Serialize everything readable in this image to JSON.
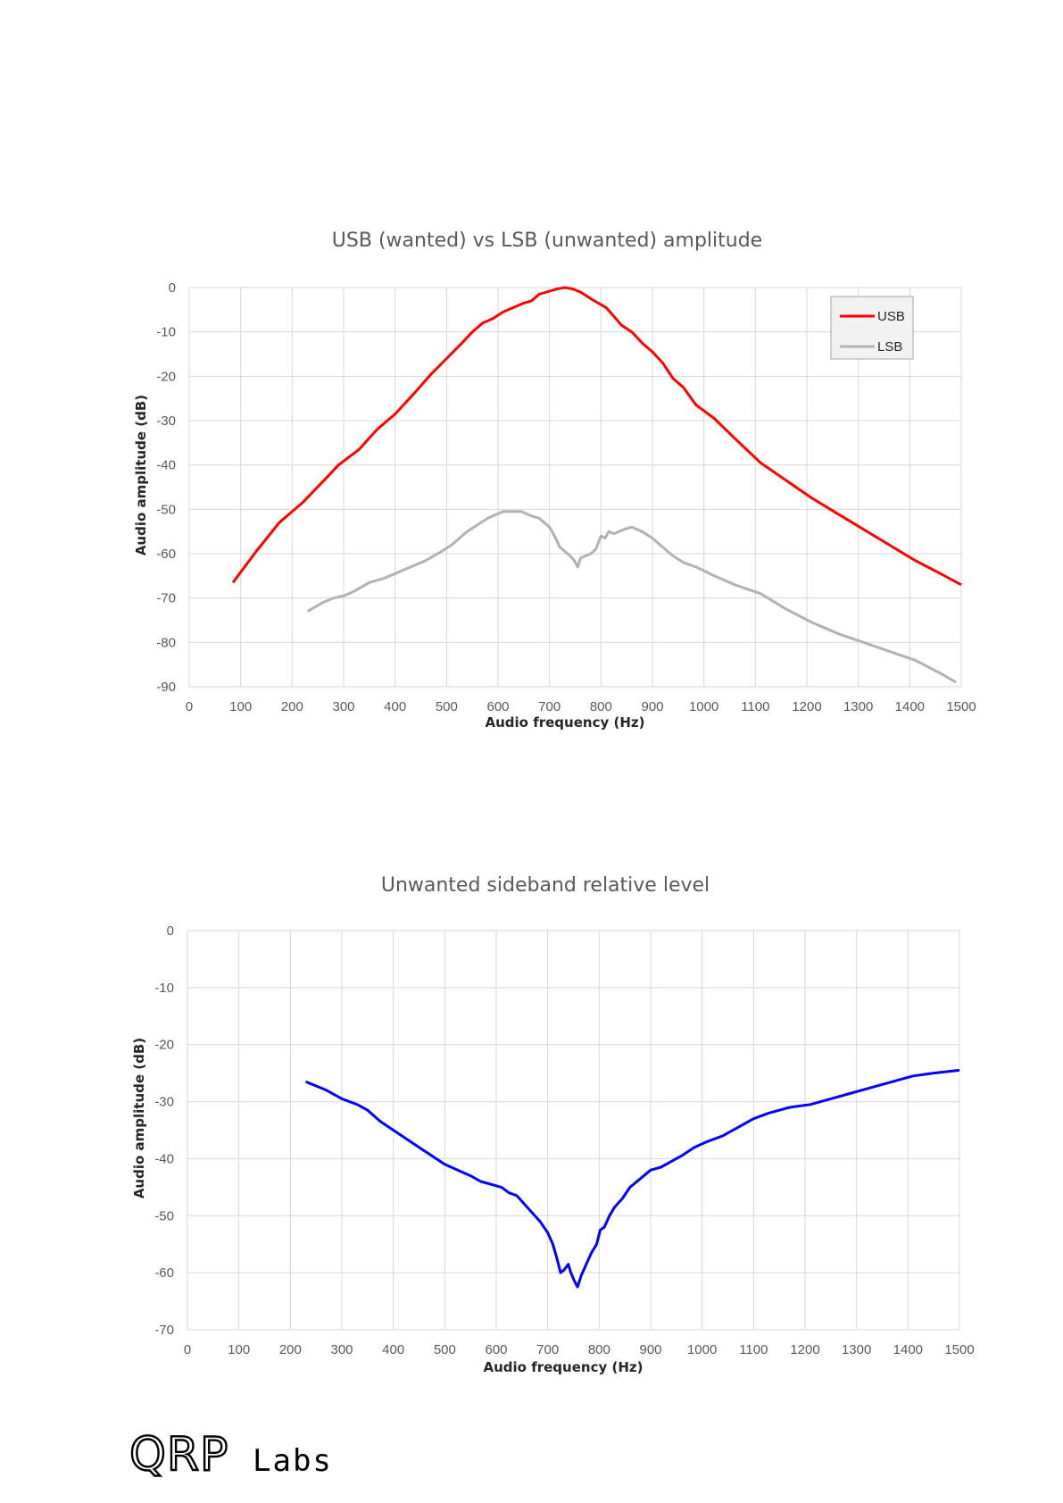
{
  "chart_data": [
    {
      "type": "line",
      "title": "USB (wanted) vs LSB (unwanted) amplitude",
      "xlabel": "Audio frequency (Hz)",
      "ylabel": "Audio amplitude (dB)",
      "xlim": [
        0,
        1500
      ],
      "ylim": [
        -90,
        0
      ],
      "x_ticks": [
        "0",
        "100",
        "200",
        "300",
        "400",
        "500",
        "600",
        "700",
        "800",
        "900",
        "1000",
        "1100",
        "1200",
        "1300",
        "1400",
        "1500"
      ],
      "y_ticks": [
        "0",
        "-10",
        "-20",
        "-30",
        "-40",
        "-50",
        "-60",
        "-70",
        "-80",
        "-90"
      ],
      "grid": true,
      "legend": "top-right",
      "series": [
        {
          "name": "USB",
          "color": "#ff0000",
          "points": [
            [
              85,
              -66.5
            ],
            [
              130,
              -59.5
            ],
            [
              175,
              -53
            ],
            [
              220,
              -48.5
            ],
            [
              270,
              -42.5
            ],
            [
              290,
              -40
            ],
            [
              330,
              -36.5
            ],
            [
              365,
              -32
            ],
            [
              400,
              -28.5
            ],
            [
              440,
              -23.5
            ],
            [
              470,
              -19.5
            ],
            [
              500,
              -16
            ],
            [
              530,
              -12.5
            ],
            [
              550,
              -10
            ],
            [
              570,
              -8
            ],
            [
              590,
              -7
            ],
            [
              610,
              -5.5
            ],
            [
              630,
              -4.5
            ],
            [
              650,
              -3.5
            ],
            [
              665,
              -3
            ],
            [
              680,
              -1.5
            ],
            [
              700,
              -0.8
            ],
            [
              715,
              -0.3
            ],
            [
              730,
              0
            ],
            [
              745,
              -0.3
            ],
            [
              760,
              -1
            ],
            [
              780,
              -2.5
            ],
            [
              795,
              -3.5
            ],
            [
              810,
              -4.5
            ],
            [
              825,
              -6.5
            ],
            [
              840,
              -8.5
            ],
            [
              860,
              -10
            ],
            [
              880,
              -12.5
            ],
            [
              900,
              -14.5
            ],
            [
              920,
              -17
            ],
            [
              940,
              -20.5
            ],
            [
              960,
              -22.5
            ],
            [
              985,
              -26.5
            ],
            [
              1020,
              -29.5
            ],
            [
              1060,
              -34
            ],
            [
              1110,
              -39.5
            ],
            [
              1160,
              -43.5
            ],
            [
              1210,
              -47.5
            ],
            [
              1260,
              -51
            ],
            [
              1310,
              -54.5
            ],
            [
              1360,
              -58
            ],
            [
              1410,
              -61.5
            ],
            [
              1460,
              -64.5
            ],
            [
              1500,
              -67
            ]
          ]
        },
        {
          "name": "LSB",
          "color": "#b2b2b2",
          "points": [
            [
              230,
              -73
            ],
            [
              260,
              -71
            ],
            [
              280,
              -70
            ],
            [
              300,
              -69.5
            ],
            [
              320,
              -68.5
            ],
            [
              350,
              -66.5
            ],
            [
              380,
              -65.5
            ],
            [
              400,
              -64.5
            ],
            [
              430,
              -63
            ],
            [
              460,
              -61.5
            ],
            [
              490,
              -59.5
            ],
            [
              510,
              -58
            ],
            [
              540,
              -55
            ],
            [
              560,
              -53.5
            ],
            [
              580,
              -52
            ],
            [
              600,
              -51
            ],
            [
              610,
              -50.5
            ],
            [
              625,
              -50.5
            ],
            [
              645,
              -50.5
            ],
            [
              655,
              -51
            ],
            [
              665,
              -51.5
            ],
            [
              680,
              -52
            ],
            [
              700,
              -54
            ],
            [
              712,
              -56.5
            ],
            [
              720,
              -58.5
            ],
            [
              730,
              -59.5
            ],
            [
              740,
              -60.5
            ],
            [
              748,
              -61.5
            ],
            [
              755,
              -63
            ],
            [
              760,
              -61
            ],
            [
              770,
              -60.5
            ],
            [
              780,
              -60
            ],
            [
              790,
              -59
            ],
            [
              800,
              -56
            ],
            [
              808,
              -56.5
            ],
            [
              815,
              -55
            ],
            [
              825,
              -55.5
            ],
            [
              835,
              -55
            ],
            [
              845,
              -54.5
            ],
            [
              860,
              -54
            ],
            [
              880,
              -55
            ],
            [
              900,
              -56.5
            ],
            [
              920,
              -58.5
            ],
            [
              940,
              -60.5
            ],
            [
              960,
              -62
            ],
            [
              985,
              -63
            ],
            [
              1020,
              -65
            ],
            [
              1060,
              -67
            ],
            [
              1110,
              -69
            ],
            [
              1160,
              -72.5
            ],
            [
              1210,
              -75.5
            ],
            [
              1260,
              -78
            ],
            [
              1310,
              -80
            ],
            [
              1360,
              -82
            ],
            [
              1410,
              -84
            ],
            [
              1460,
              -87
            ],
            [
              1490,
              -89
            ]
          ]
        }
      ]
    },
    {
      "type": "line",
      "title": "Unwanted sideband relative level",
      "xlabel": "Audio frequency (Hz)",
      "ylabel": "Audio amplitude (dB)",
      "xlim": [
        0,
        1500
      ],
      "ylim": [
        -70,
        0
      ],
      "x_ticks": [
        "0",
        "100",
        "200",
        "300",
        "400",
        "500",
        "600",
        "700",
        "800",
        "900",
        "1000",
        "1100",
        "1200",
        "1300",
        "1400",
        "1500"
      ],
      "y_ticks": [
        "0",
        "-10",
        "-20",
        "-30",
        "-40",
        "-50",
        "-60",
        "-70"
      ],
      "grid": true,
      "series": [
        {
          "color": "#0000ff",
          "points": [
            [
              230,
              -26.5
            ],
            [
              270,
              -28
            ],
            [
              300,
              -29.5
            ],
            [
              330,
              -30.5
            ],
            [
              350,
              -31.5
            ],
            [
              375,
              -33.5
            ],
            [
              400,
              -35
            ],
            [
              425,
              -36.5
            ],
            [
              450,
              -38
            ],
            [
              475,
              -39.5
            ],
            [
              500,
              -41
            ],
            [
              525,
              -42
            ],
            [
              550,
              -43
            ],
            [
              570,
              -44
            ],
            [
              590,
              -44.5
            ],
            [
              610,
              -45
            ],
            [
              625,
              -46
            ],
            [
              640,
              -46.5
            ],
            [
              655,
              -48
            ],
            [
              670,
              -49.5
            ],
            [
              685,
              -51
            ],
            [
              700,
              -53
            ],
            [
              710,
              -55
            ],
            [
              718,
              -57.5
            ],
            [
              725,
              -60
            ],
            [
              732,
              -59.5
            ],
            [
              740,
              -58.5
            ],
            [
              745,
              -60
            ],
            [
              752,
              -61.5
            ],
            [
              758,
              -62.5
            ],
            [
              765,
              -60.5
            ],
            [
              775,
              -58.5
            ],
            [
              785,
              -56.5
            ],
            [
              795,
              -55
            ],
            [
              802,
              -52.5
            ],
            [
              810,
              -52
            ],
            [
              820,
              -50
            ],
            [
              830,
              -48.5
            ],
            [
              845,
              -47
            ],
            [
              860,
              -45
            ],
            [
              880,
              -43.5
            ],
            [
              900,
              -42
            ],
            [
              920,
              -41.5
            ],
            [
              940,
              -40.5
            ],
            [
              960,
              -39.5
            ],
            [
              985,
              -38
            ],
            [
              1010,
              -37
            ],
            [
              1040,
              -36
            ],
            [
              1070,
              -34.5
            ],
            [
              1100,
              -33
            ],
            [
              1130,
              -32
            ],
            [
              1170,
              -31
            ],
            [
              1210,
              -30.5
            ],
            [
              1250,
              -29.5
            ],
            [
              1290,
              -28.5
            ],
            [
              1330,
              -27.5
            ],
            [
              1370,
              -26.5
            ],
            [
              1410,
              -25.5
            ],
            [
              1450,
              -25
            ],
            [
              1500,
              -24.5
            ]
          ]
        }
      ]
    }
  ],
  "logo": {
    "text_big": "QRP",
    "text_small": "Labs"
  }
}
